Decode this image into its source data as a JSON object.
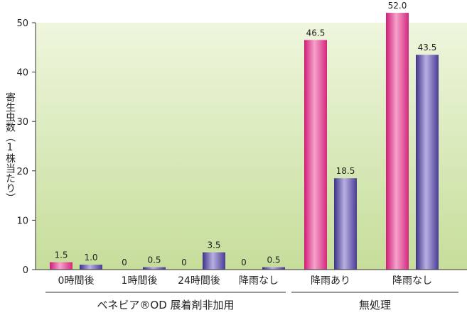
{
  "chart_data": {
    "type": "bar",
    "title": "",
    "ylabel": "寄生虫数（1株当たり）",
    "ylim": [
      0,
      50
    ],
    "yticks": [
      0,
      10,
      20,
      30,
      40,
      50
    ],
    "categories": [
      "0時間後",
      "1時間後",
      "24時間後",
      "降雨なし",
      "降雨あり",
      "降雨なし"
    ],
    "groups": [
      {
        "label": "ベネビア®OD 展着剤非加用",
        "categories": [
          0,
          1,
          2,
          3
        ]
      },
      {
        "label": "無処理",
        "categories": [
          4,
          5
        ]
      }
    ],
    "series": [
      {
        "values": [
          1.5,
          0,
          0,
          0,
          46.5,
          52.0
        ],
        "labels": [
          "1.5",
          "0",
          "0",
          "0",
          "46.5",
          "52.0"
        ],
        "color": "#e0338a"
      },
      {
        "values": [
          1.0,
          0.5,
          3.5,
          0.5,
          18.5,
          43.5
        ],
        "labels": [
          "1.0",
          "0.5",
          "3.5",
          "0.5",
          "18.5",
          "43.5"
        ],
        "color": "#5a4aa0"
      }
    ],
    "background": {
      "top": "#eef6dd",
      "bottom": "#c6dd9a"
    }
  }
}
